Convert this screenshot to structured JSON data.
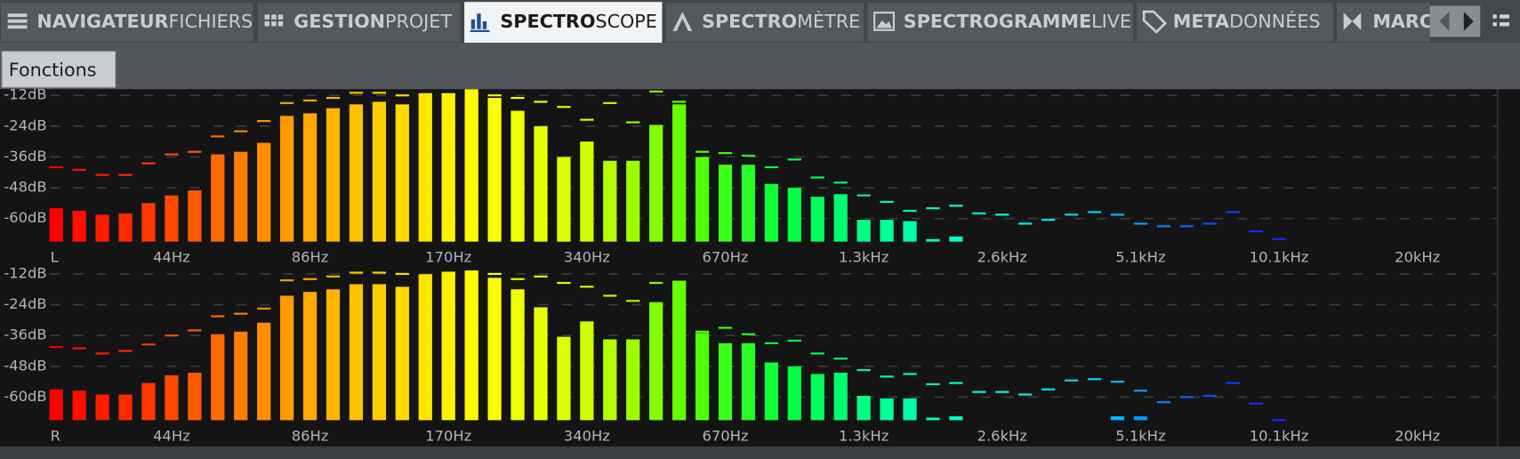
{
  "tabs": [
    {
      "bold": "NAVIGATEUR",
      "light": "FICHIERS"
    },
    {
      "bold": "GESTION",
      "light": "PROJET"
    },
    {
      "bold": "SPECTRO",
      "light": "SCOPE",
      "active": true
    },
    {
      "bold": "SPECTRO",
      "light": "MÈTRE"
    },
    {
      "bold": "SPECTROGRAMME",
      "light": "LIVE"
    },
    {
      "bold": "META",
      "light": "DONNÉES"
    },
    {
      "bold": "MARC",
      "light": ""
    }
  ],
  "toolbar": {
    "button": "Fonctions"
  },
  "chart_data": [
    {
      "type": "bar",
      "channel": "L",
      "categories": [
        null,
        null,
        null,
        null,
        null,
        "44Hz",
        null,
        null,
        null,
        null,
        null,
        "86Hz",
        null,
        null,
        null,
        null,
        null,
        "170Hz",
        null,
        null,
        null,
        null,
        null,
        "340Hz",
        null,
        null,
        null,
        null,
        null,
        "670Hz",
        null,
        null,
        null,
        null,
        null,
        "1.3kHz",
        null,
        null,
        null,
        null,
        null,
        "2.6kHz",
        null,
        null,
        null,
        null,
        null,
        "5.1kHz",
        null,
        null,
        null,
        null,
        null,
        "10.1kHz",
        null,
        null,
        null,
        null,
        null,
        "20kHz"
      ],
      "values": [
        -56,
        -57,
        -58.5,
        -58,
        -54,
        -51,
        -49,
        -35,
        -34,
        -30.5,
        -20,
        -19,
        -17,
        -15.5,
        -14.5,
        -15.5,
        -11.5,
        -11.5,
        -10,
        -13,
        -18,
        -24,
        -36,
        -30,
        -37.5,
        -37.5,
        -23.5,
        -15.5,
        -36,
        -39,
        -39,
        -46.5,
        -48,
        -51.5,
        -50.5,
        -60.5,
        -60.5,
        -61,
        -68,
        -67,
        null,
        null,
        null,
        null,
        null,
        null,
        null,
        null,
        null,
        null,
        null,
        null,
        null,
        null,
        null,
        null,
        null,
        null,
        null,
        null
      ],
      "peaks": [
        -40,
        -41,
        -43,
        -43,
        -38.5,
        -35,
        -34,
        -28,
        -26,
        -22,
        -15,
        -14,
        -13,
        -11,
        -11,
        -12,
        -11.5,
        -11.5,
        -10,
        -12,
        -13,
        -14.5,
        -16.5,
        -21.5,
        -15,
        -22.5,
        -10.5,
        -14.5,
        -34,
        -34.5,
        -35.5,
        -40,
        -37,
        -44,
        -46,
        -51,
        -53.5,
        -57,
        -56,
        -55,
        -58,
        -58.5,
        -62,
        -60.5,
        -58.5,
        -57.5,
        -58.5,
        -62,
        -63,
        -63,
        -62,
        -57.5,
        -65,
        -68,
        null,
        null,
        null,
        null,
        null,
        null
      ],
      "ylim": [
        -69,
        -10
      ],
      "yticks": [
        {
          "value": -12,
          "label": "-12dB"
        },
        {
          "value": -24,
          "label": "-24dB"
        },
        {
          "value": -36,
          "label": "-36dB"
        },
        {
          "value": -48,
          "label": "-48dB"
        },
        {
          "value": -60,
          "label": "-60dB"
        }
      ],
      "grid": true,
      "colors": [
        "#ff0000",
        "#ff4000",
        "#ff9000",
        "#ffc800",
        "#ffff00",
        "#d8ff00",
        "#60ff00",
        "#00ff40",
        "#00ffa0",
        "#00ffe8",
        "#00c8ff",
        "#0050ff",
        "#2010ff",
        "#8000ff"
      ]
    },
    {
      "type": "bar",
      "channel": "R",
      "categories": [
        null,
        null,
        null,
        null,
        null,
        "44Hz",
        null,
        null,
        null,
        null,
        null,
        "86Hz",
        null,
        null,
        null,
        null,
        null,
        "170Hz",
        null,
        null,
        null,
        null,
        null,
        "340Hz",
        null,
        null,
        null,
        null,
        null,
        "670Hz",
        null,
        null,
        null,
        null,
        null,
        "1.3kHz",
        null,
        null,
        null,
        null,
        null,
        "2.6kHz",
        null,
        null,
        null,
        null,
        null,
        "5.1kHz",
        null,
        null,
        null,
        null,
        null,
        "10.1kHz",
        null,
        null,
        null,
        null,
        null,
        "20kHz"
      ],
      "values": [
        -57,
        -57.5,
        -59,
        -59,
        -54.5,
        -51.5,
        -50.5,
        -35.5,
        -34.5,
        -31,
        -20.5,
        -19,
        -18,
        -16,
        -16,
        -17,
        -12.5,
        -11.5,
        -11,
        -13.5,
        -18,
        -25,
        -36.5,
        -30.5,
        -37.5,
        -37.5,
        -23,
        -15,
        -35,
        -39,
        -39,
        -46.5,
        -48,
        -51,
        -50.5,
        -59.5,
        -60.5,
        -60.5,
        -68,
        -67.5,
        null,
        null,
        null,
        null,
        null,
        null,
        -67.5,
        -67.5,
        null,
        null,
        null,
        null,
        null,
        null,
        null,
        null,
        null,
        null,
        null,
        null
      ],
      "peaks": [
        -40.5,
        -41,
        -43,
        -42,
        -39.5,
        -36,
        -34,
        -28.5,
        -27.5,
        -25.5,
        -14.5,
        -14,
        -13,
        -11.5,
        -11.5,
        -12,
        -12.5,
        -11.5,
        -11,
        -12,
        -14,
        -13,
        -15.5,
        -17,
        -20.5,
        -22.5,
        -15.5,
        -15,
        -34.5,
        -33,
        -35.5,
        -39,
        -38,
        -43,
        -45,
        -49.5,
        -52,
        -51,
        -55,
        -54.5,
        -58,
        -58,
        -59,
        -57,
        -53.5,
        -53,
        -54,
        -57.5,
        -62,
        -60,
        -59.5,
        -54.5,
        -62.5,
        -69,
        null,
        null,
        null,
        null,
        null,
        null
      ],
      "ylim": [
        -69,
        -10
      ],
      "yticks": [
        {
          "value": -12,
          "label": "-12dB"
        },
        {
          "value": -24,
          "label": "-24dB"
        },
        {
          "value": -36,
          "label": "-36dB"
        },
        {
          "value": -48,
          "label": "-48dB"
        },
        {
          "value": -60,
          "label": "-60dB"
        }
      ],
      "grid": true,
      "colors": [
        "#ff0000",
        "#ff4000",
        "#ff9000",
        "#ffc800",
        "#ffff00",
        "#d8ff00",
        "#60ff00",
        "#00ff40",
        "#00ffa0",
        "#00ffe8",
        "#00c8ff",
        "#0050ff",
        "#2010ff",
        "#8000ff"
      ]
    }
  ]
}
